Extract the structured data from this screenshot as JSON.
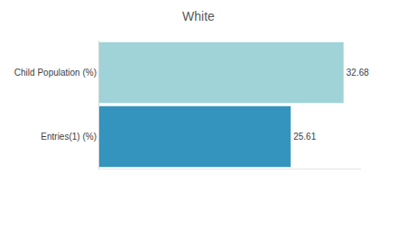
{
  "chart_data": {
    "type": "bar",
    "orientation": "horizontal",
    "title": "White",
    "categories": [
      "Child Population (%)",
      "Entries(1) (%)"
    ],
    "values": [
      32.68,
      25.61
    ],
    "colors": [
      "#9fd3d8",
      "#3594bd"
    ],
    "xlim": [
      0,
      35
    ],
    "data_labels": true,
    "tick_labels": "y",
    "grid": false
  }
}
